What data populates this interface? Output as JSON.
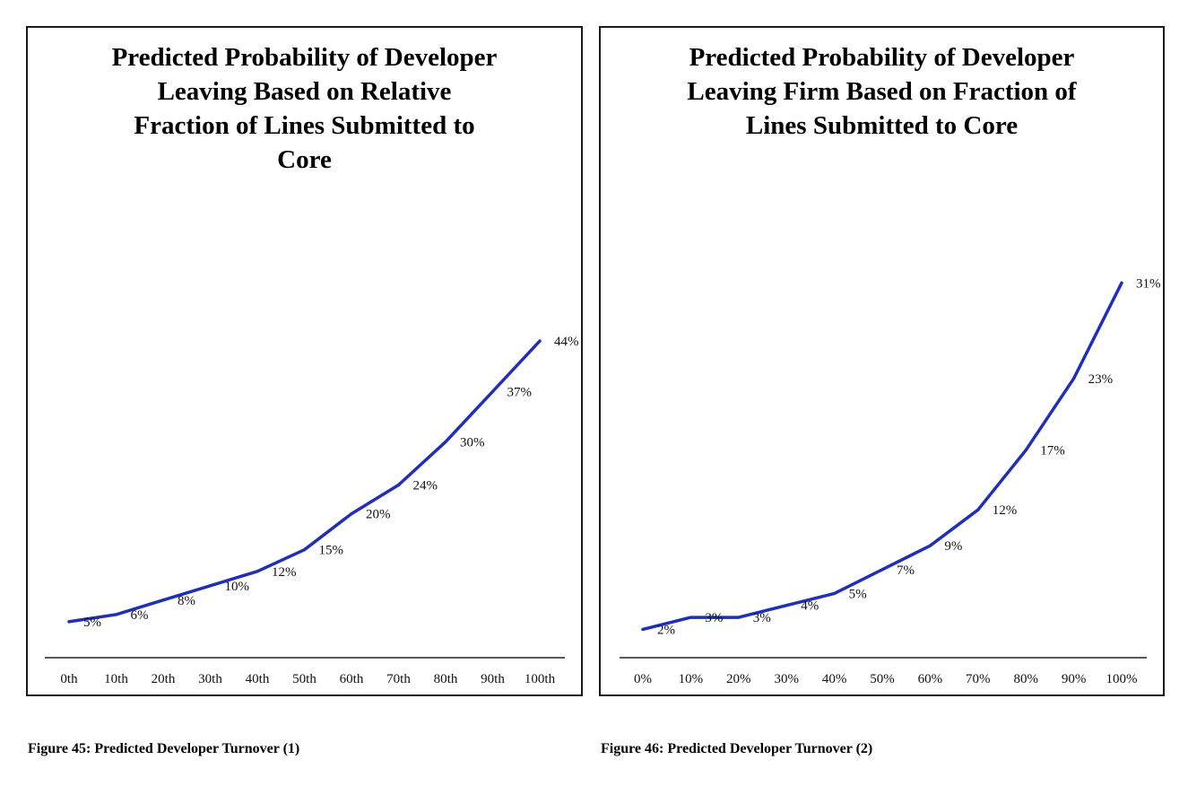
{
  "chart_data": [
    {
      "type": "line",
      "title": "Predicted Probability of Developer\nLeaving Based on Relative\nFraction of Lines Submitted to\nCore",
      "xlabel": "",
      "ylabel": "",
      "categories": [
        "0th",
        "10th",
        "20th",
        "30th",
        "40th",
        "50th",
        "60th",
        "70th",
        "80th",
        "90th",
        "100th"
      ],
      "values": [
        5,
        6,
        8,
        10,
        12,
        15,
        20,
        24,
        30,
        37,
        44
      ],
      "data_labels": [
        "5%",
        "6%",
        "8%",
        "10%",
        "12%",
        "15%",
        "20%",
        "24%",
        "30%",
        "37%",
        "44%"
      ],
      "ylim": [
        0,
        50
      ],
      "grid": false,
      "line_color": "#1f2fb8"
    },
    {
      "type": "line",
      "title": "Predicted Probability of Developer\nLeaving Firm Based on Fraction of\nLines Submitted to Core",
      "xlabel": "",
      "ylabel": "",
      "categories": [
        "0%",
        "10%",
        "20%",
        "30%",
        "40%",
        "50%",
        "60%",
        "70%",
        "80%",
        "90%",
        "100%"
      ],
      "values": [
        2,
        3,
        3,
        4,
        5,
        7,
        9,
        12,
        17,
        23,
        31
      ],
      "data_labels": [
        "2%",
        "3%",
        "3%",
        "4%",
        "5%",
        "7%",
        "9%",
        "12%",
        "17%",
        "23%",
        "31%"
      ],
      "ylim": [
        0,
        35
      ],
      "grid": false,
      "line_color": "#1f2fb8"
    }
  ],
  "captions": {
    "figure_45": "Figure 45: Predicted Developer Turnover (1)",
    "figure_46": "Figure 46: Predicted Developer Turnover (2)"
  }
}
